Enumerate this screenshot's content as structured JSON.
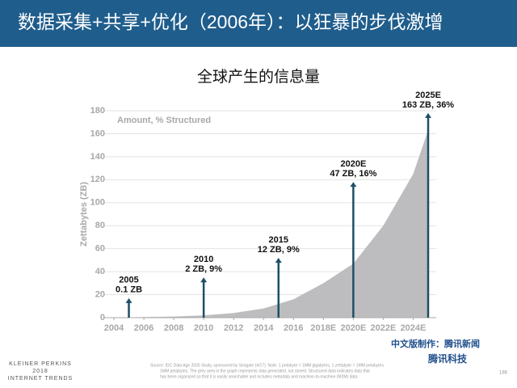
{
  "header": {
    "title": "数据采集+共享+优化（2006年）：以狂暴的步伐激增"
  },
  "chart_data": {
    "type": "area",
    "title": "全球产生的信息量",
    "subtitle": "Amount, % Structured",
    "y_label": "Zettabytes (ZB)",
    "x": [
      2004,
      2006,
      2008,
      2010,
      2012,
      2014,
      2016,
      2018,
      2020,
      2022,
      2024,
      2025
    ],
    "series": [
      {
        "color": "#bdbdbf",
        "values": [
          0,
          0.5,
          1,
          2,
          4,
          8,
          16,
          30,
          47,
          80,
          125,
          163
        ]
      }
    ],
    "xlim": [
      2004,
      2025
    ],
    "xticks": [
      2004,
      2006,
      2008,
      2010,
      2012,
      2014,
      2016,
      {
        "value": 2018,
        "label": "2018E"
      },
      {
        "value": 2020,
        "label": "2020E"
      },
      {
        "value": 2022,
        "label": "2022E"
      },
      {
        "value": 2024,
        "label": "2024E"
      }
    ],
    "ylim": [
      0,
      180
    ],
    "yticks": [
      0,
      20,
      40,
      60,
      80,
      100,
      120,
      140,
      160,
      180
    ],
    "grid": true,
    "annotations": [
      {
        "x": 2005,
        "y": 17,
        "lines": [
          "2005",
          "0.1 ZB"
        ]
      },
      {
        "x": 2010,
        "y": 35,
        "lines": [
          "2010",
          "2 ZB, 9%"
        ]
      },
      {
        "x": 2015,
        "y": 52,
        "lines": [
          "2015",
          "12 ZB, 9%"
        ]
      },
      {
        "x": 2020,
        "y": 118,
        "lines": [
          "2020E",
          "47 ZB, 16%"
        ]
      },
      {
        "x": 2025,
        "y": 178,
        "lines": [
          "2025E",
          "163 ZB, 36%"
        ]
      }
    ],
    "arrow_color": "#1d4f66"
  },
  "footer": {
    "brand": [
      "KLEINER PERKINS",
      "2018",
      "INTERNET TRENDS"
    ],
    "source": [
      "Source: IDC Data Age 2025 Study, sponsored by Seagate (4/17). Note: 1 petabyte = 1MM gigabytes, 1 zettabyte = 1MM petabytes.",
      "1MM petabytes. The grey area in the graph represents data generated, not stored. Structured data indicates data that",
      "has been organized so that it is easily searchable and includes metadata and machine-to-machine (M2M) data."
    ],
    "page": "188",
    "credit": [
      "中文版制作：腾讯新闻",
      "腾讯科技"
    ]
  }
}
